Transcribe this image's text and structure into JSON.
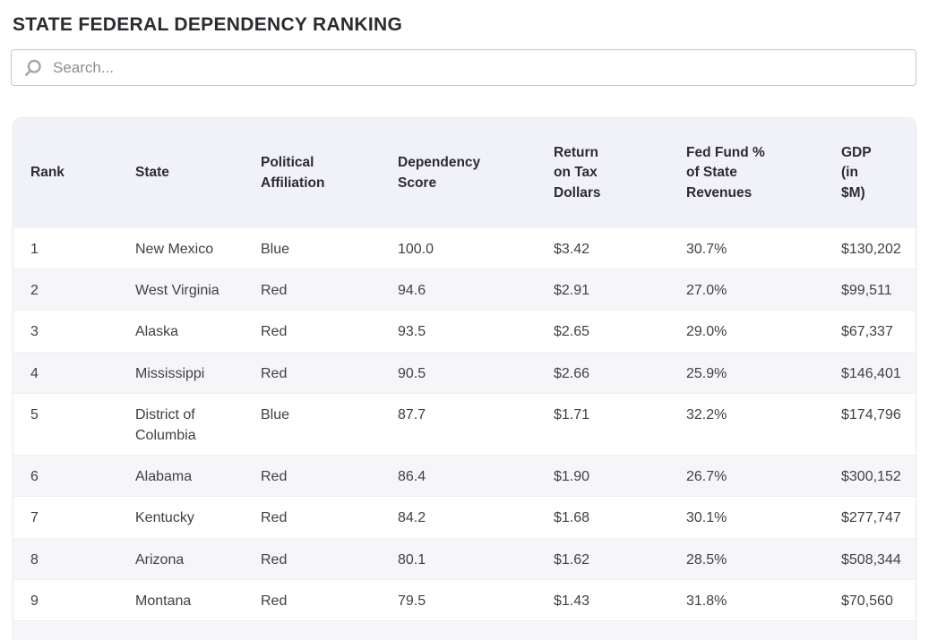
{
  "page": {
    "title": "STATE FEDERAL DEPENDENCY RANKING"
  },
  "search": {
    "placeholder": "Search...",
    "value": ""
  },
  "table": {
    "columns": [
      {
        "key": "rank",
        "label": "Rank"
      },
      {
        "key": "state",
        "label": "State"
      },
      {
        "key": "affiliation",
        "label": "Political\nAffiliation"
      },
      {
        "key": "score",
        "label": "Dependency\nScore"
      },
      {
        "key": "return_tax",
        "label": "Return\non Tax\nDollars"
      },
      {
        "key": "fed_fund",
        "label": "Fed Fund %\nof State\nRevenues"
      },
      {
        "key": "gdp",
        "label": "GDP\n(in\n$M)"
      }
    ],
    "rows": [
      {
        "rank": "1",
        "state": "New Mexico",
        "affiliation": "Blue",
        "score": "100.0",
        "return_tax": "$3.42",
        "fed_fund": "30.7%",
        "gdp": "$130,202"
      },
      {
        "rank": "2",
        "state": "West Virginia",
        "affiliation": "Red",
        "score": "94.6",
        "return_tax": "$2.91",
        "fed_fund": "27.0%",
        "gdp": "$99,511"
      },
      {
        "rank": "3",
        "state": "Alaska",
        "affiliation": "Red",
        "score": "93.5",
        "return_tax": "$2.65",
        "fed_fund": "29.0%",
        "gdp": "$67,337"
      },
      {
        "rank": "4",
        "state": "Mississippi",
        "affiliation": "Red",
        "score": "90.5",
        "return_tax": "$2.66",
        "fed_fund": "25.9%",
        "gdp": "$146,401"
      },
      {
        "rank": "5",
        "state": "District of Columbia",
        "affiliation": "Blue",
        "score": "87.7",
        "return_tax": "$1.71",
        "fed_fund": "32.2%",
        "gdp": "$174,796"
      },
      {
        "rank": "6",
        "state": "Alabama",
        "affiliation": "Red",
        "score": "86.4",
        "return_tax": "$1.90",
        "fed_fund": "26.7%",
        "gdp": "$300,152"
      },
      {
        "rank": "7",
        "state": "Kentucky",
        "affiliation": "Red",
        "score": "84.2",
        "return_tax": "$1.68",
        "fed_fund": "30.1%",
        "gdp": "$277,747"
      },
      {
        "rank": "8",
        "state": "Arizona",
        "affiliation": "Red",
        "score": "80.1",
        "return_tax": "$1.62",
        "fed_fund": "28.5%",
        "gdp": "$508,344"
      },
      {
        "rank": "9",
        "state": "Montana",
        "affiliation": "Red",
        "score": "79.5",
        "return_tax": "$1.43",
        "fed_fund": "31.8%",
        "gdp": "$70,560"
      }
    ],
    "colors": {
      "header_bg": "#f1f1f8",
      "row_alt_bg": "#f6f6f9",
      "header_text": "#2b2b30",
      "body_text": "#3f3f45",
      "search_icon": "#a5a5ab"
    }
  }
}
